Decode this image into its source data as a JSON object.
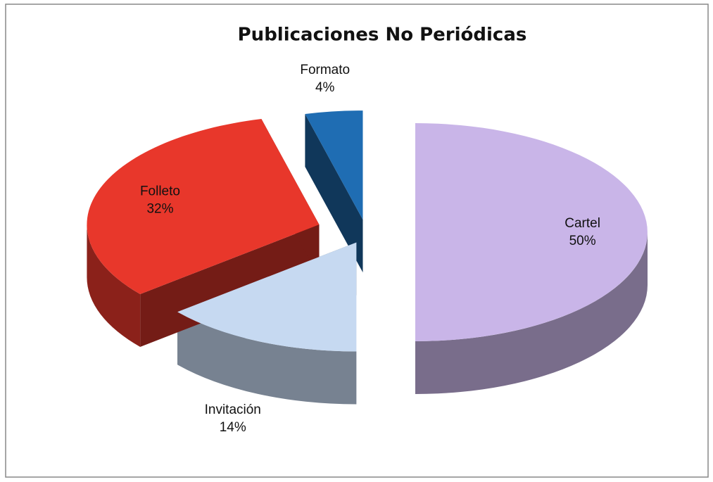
{
  "chart_data": {
    "type": "pie",
    "title": "Publicaciones No Periódicas",
    "categories": [
      "Cartel",
      "Invitación",
      "Folleto",
      "Formato"
    ],
    "values": [
      50,
      14,
      32,
      4
    ],
    "value_labels": [
      "50%",
      "14%",
      "32%",
      "4%"
    ],
    "colors": [
      "#c9b5e8",
      "#c6d9f1",
      "#e8372b",
      "#1f6db3"
    ]
  }
}
